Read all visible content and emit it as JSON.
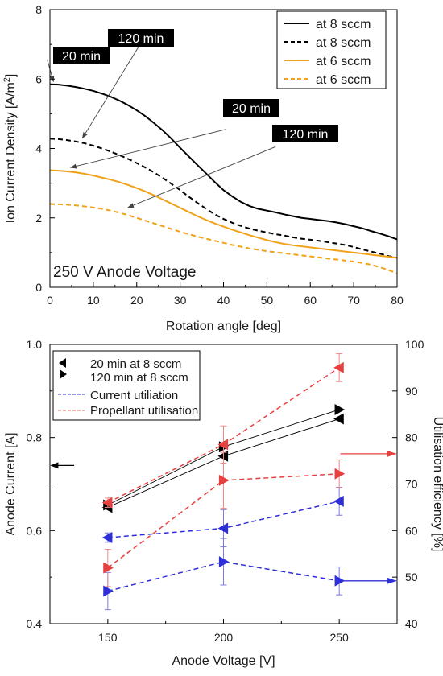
{
  "colors": {
    "black": "#000000",
    "orange": "#f0a21a",
    "blue": "#2f2fd8",
    "red": "#e8403f",
    "red_light": "#f08a8a",
    "blue_light": "#5b5bd8"
  },
  "chart_data": [
    {
      "type": "line",
      "xlabel": "Rotation angle [deg]",
      "ylabel": "Ion Current Density [A/m²]",
      "xlim": [
        0,
        80
      ],
      "ylim": [
        0,
        8
      ],
      "xticks": [
        "0",
        "10",
        "20",
        "30",
        "40",
        "50",
        "60",
        "70",
        "80"
      ],
      "yticks": [
        "0",
        "2",
        "4",
        "6",
        "8"
      ],
      "legend_position": "top-right",
      "series": [
        {
          "name": "at 8 sccm",
          "style": "solid",
          "color": "#000000",
          "x": [
            0,
            2,
            4,
            6,
            8,
            10,
            12,
            14,
            16,
            18,
            20,
            22,
            24,
            26,
            28,
            30,
            32,
            34,
            36,
            38,
            40,
            42,
            44,
            46,
            48,
            50,
            52,
            54,
            56,
            58,
            60,
            62,
            64,
            66,
            68,
            70,
            72,
            74,
            76,
            78,
            80
          ],
          "y": [
            5.85,
            5.84,
            5.81,
            5.77,
            5.72,
            5.66,
            5.58,
            5.49,
            5.38,
            5.25,
            5.1,
            4.93,
            4.73,
            4.52,
            4.28,
            4.02,
            3.77,
            3.52,
            3.28,
            3.03,
            2.8,
            2.62,
            2.46,
            2.34,
            2.26,
            2.21,
            2.16,
            2.1,
            2.05,
            2.0,
            1.97,
            1.94,
            1.91,
            1.87,
            1.82,
            1.76,
            1.7,
            1.62,
            1.55,
            1.47,
            1.38
          ]
        },
        {
          "name": "at 8 sccm",
          "style": "dashed",
          "color": "#000000",
          "x": [
            0,
            2,
            4,
            6,
            8,
            10,
            12,
            14,
            16,
            18,
            20,
            22,
            24,
            26,
            28,
            30,
            32,
            34,
            36,
            38,
            40,
            42,
            44,
            46,
            48,
            50,
            52,
            54,
            56,
            58,
            60,
            62,
            64,
            66,
            68,
            70,
            72,
            74,
            76,
            78,
            80
          ],
          "y": [
            4.28,
            4.27,
            4.24,
            4.2,
            4.15,
            4.08,
            4.0,
            3.91,
            3.81,
            3.7,
            3.58,
            3.45,
            3.31,
            3.15,
            2.98,
            2.8,
            2.61,
            2.43,
            2.26,
            2.1,
            1.97,
            1.86,
            1.77,
            1.69,
            1.63,
            1.58,
            1.53,
            1.49,
            1.44,
            1.4,
            1.37,
            1.34,
            1.3,
            1.26,
            1.22,
            1.16,
            1.09,
            1.03,
            0.97,
            0.9,
            0.85
          ]
        },
        {
          "name": "at 6 sccm",
          "style": "solid",
          "color": "#f0a21a",
          "x": [
            0,
            2,
            4,
            6,
            8,
            10,
            12,
            14,
            16,
            18,
            20,
            22,
            24,
            26,
            28,
            30,
            32,
            34,
            36,
            38,
            40,
            42,
            44,
            46,
            48,
            50,
            52,
            54,
            56,
            58,
            60,
            62,
            64,
            66,
            68,
            70,
            72,
            74,
            76,
            78,
            80
          ],
          "y": [
            3.37,
            3.36,
            3.34,
            3.31,
            3.27,
            3.22,
            3.16,
            3.1,
            3.03,
            2.95,
            2.86,
            2.76,
            2.65,
            2.53,
            2.41,
            2.29,
            2.17,
            2.05,
            1.94,
            1.84,
            1.75,
            1.66,
            1.58,
            1.5,
            1.43,
            1.36,
            1.3,
            1.25,
            1.21,
            1.18,
            1.15,
            1.12,
            1.09,
            1.06,
            1.03,
            1.0,
            0.97,
            0.94,
            0.91,
            0.88,
            0.85
          ]
        },
        {
          "name": "at 6 sccm",
          "style": "dashed",
          "color": "#f0a21a",
          "x": [
            0,
            2,
            4,
            6,
            8,
            10,
            12,
            14,
            16,
            18,
            20,
            22,
            24,
            26,
            28,
            30,
            32,
            34,
            36,
            38,
            40,
            42,
            44,
            46,
            48,
            50,
            52,
            54,
            56,
            58,
            60,
            62,
            64,
            66,
            68,
            70,
            72,
            74,
            76,
            78,
            80
          ],
          "y": [
            2.4,
            2.39,
            2.38,
            2.36,
            2.33,
            2.3,
            2.26,
            2.21,
            2.15,
            2.08,
            2.0,
            1.92,
            1.84,
            1.76,
            1.68,
            1.6,
            1.53,
            1.46,
            1.4,
            1.34,
            1.28,
            1.22,
            1.17,
            1.12,
            1.08,
            1.04,
            1.01,
            0.98,
            0.95,
            0.92,
            0.89,
            0.86,
            0.83,
            0.8,
            0.77,
            0.74,
            0.7,
            0.65,
            0.58,
            0.5,
            0.4
          ]
        }
      ],
      "annotations": [
        {
          "text": "20 min",
          "from": [
            -0.6,
            6.55
          ],
          "to": [
            0.8,
            5.93
          ]
        },
        {
          "text": "120 min",
          "from": [
            22.0,
            7.25
          ],
          "to": [
            7.5,
            4.3
          ]
        },
        {
          "text": "20 min",
          "from": [
            40.5,
            4.55
          ],
          "to": [
            4.8,
            3.45
          ]
        },
        {
          "text": "120 min",
          "from": [
            52.0,
            4.05
          ],
          "to": [
            18.0,
            2.3
          ]
        }
      ],
      "inset_text": "250 V Anode Voltage"
    },
    {
      "type": "scatter",
      "xlabel": "Anode Voltage [V]",
      "ylabel": "Anode Current [A]",
      "y2label": "Utilisation efficiency [%]",
      "xlim": [
        125,
        275
      ],
      "ylim": [
        0.4,
        1.0
      ],
      "y2lim": [
        40,
        100
      ],
      "xticks": [
        "150",
        "200",
        "250"
      ],
      "yticks": [
        "0.4",
        "0.6",
        "0.8",
        "1.0"
      ],
      "y2ticks": [
        "40",
        "50",
        "60",
        "70",
        "80",
        "90",
        "100"
      ],
      "legend_position": "top-left",
      "series": [
        {
          "name": "20 min at 8 sccm",
          "axis": "left",
          "marker": "triangle-left",
          "color": "#000000",
          "x": [
            150,
            200,
            250
          ],
          "y": [
            0.65,
            0.76,
            0.84
          ]
        },
        {
          "name": "120 min at 8 sccm",
          "axis": "left",
          "marker": "triangle-right",
          "color": "#000000",
          "x": [
            150,
            200,
            250
          ],
          "y": [
            0.655,
            0.78,
            0.86
          ]
        },
        {
          "name": "Current utiliation",
          "axis": "right",
          "style": "dashed",
          "color": "#2f2fd8",
          "groups": [
            {
              "marker": "triangle-left",
              "x": [
                150,
                200,
                250
              ],
              "y": [
                58.5,
                60.5,
                66.3
              ],
              "err": [
                1.0,
                4.0,
                3.0
              ]
            },
            {
              "marker": "triangle-right",
              "x": [
                150,
                200,
                250
              ],
              "y": [
                47.0,
                53.3,
                49.2
              ],
              "err": [
                4.0,
                5.0,
                3.0
              ]
            }
          ]
        },
        {
          "name": "Propellant utilisation",
          "axis": "right",
          "style": "dashed",
          "color": "#e8403f",
          "groups": [
            {
              "marker": "triangle-left",
              "x": [
                150,
                200,
                250
              ],
              "y": [
                66.0,
                78.5,
                95.0
              ],
              "err": [
                1.0,
                4.0,
                3.0
              ]
            },
            {
              "marker": "triangle-right",
              "x": [
                150,
                200,
                250
              ],
              "y": [
                52.0,
                70.8,
                72.2
              ],
              "err": [
                4.0,
                6.0,
                3.0
              ]
            }
          ]
        }
      ],
      "axis_arrows": [
        {
          "side": "left",
          "color": "#000000",
          "x_from": 135.5,
          "x_to": 125.5,
          "y": 0.74
        },
        {
          "side": "right",
          "color": "#e8403f",
          "x_from": 250.5,
          "x_to": 274.5,
          "y": 0.765
        },
        {
          "side": "right",
          "color": "#2f2fd8",
          "x_from": 251.0,
          "x_to": 274.5,
          "y": 0.492
        }
      ]
    }
  ]
}
